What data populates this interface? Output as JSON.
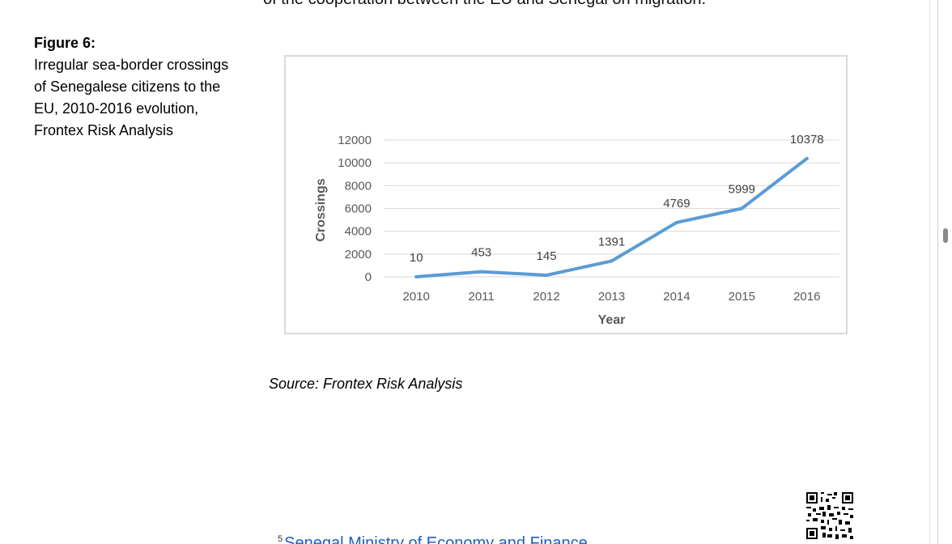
{
  "document": {
    "top_text": "of the cooperation between the EU and Senegal on migration.",
    "figure_title": "Figure 6:",
    "figure_caption": "Irregular sea-border crossings of Senegalese citizens to the EU, 2010-2016 evolution, Frontex Risk Analysis",
    "source": "Source: Frontex Risk Analysis",
    "footnote_number": "5",
    "footnote_text": "Senegal Ministry of Economy and Finance"
  },
  "chart_data": {
    "type": "line",
    "title": "",
    "xlabel": "Year",
    "ylabel": "Crossings",
    "categories": [
      "2010",
      "2011",
      "2012",
      "2013",
      "2014",
      "2015",
      "2016"
    ],
    "series": [
      {
        "name": "Crossings",
        "values": [
          10,
          453,
          145,
          1391,
          4769,
          5999,
          10378
        ],
        "labels": [
          "10",
          "453",
          "145",
          "1391",
          "4769",
          "5999",
          "10378"
        ]
      }
    ],
    "ylim": [
      0,
      12000
    ],
    "yticks": [
      0,
      2000,
      4000,
      6000,
      8000,
      10000,
      12000
    ],
    "ytick_labels": [
      "0",
      "2000",
      "4000",
      "6000",
      "8000",
      "10000",
      "12000"
    ],
    "grid": true,
    "line_color": "#5b9bd5",
    "grid_color": "#d9d9d9",
    "text_color": "#595959"
  }
}
